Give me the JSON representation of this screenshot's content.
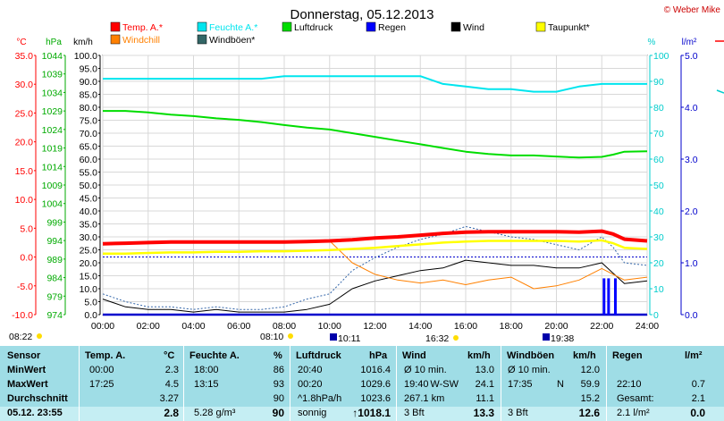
{
  "chart_data": {
    "type": "line",
    "title": "Donnerstag, 05.12.2013",
    "credit": "© Weber Mike",
    "legend": [
      {
        "name": "Temp. A.*",
        "color": "#ff0000"
      },
      {
        "name": "Feuchte A.*",
        "color": "#00e5ee"
      },
      {
        "name": "Luftdruck",
        "color": "#00dd00"
      },
      {
        "name": "Regen",
        "color": "#0000ff"
      },
      {
        "name": "Wind",
        "color": "#000000"
      },
      {
        "name": "Taupunkt*",
        "color": "#ffff00"
      },
      {
        "name": "Windchill",
        "color": "#ff8000"
      },
      {
        "name": "Windböen*",
        "color": "#336666"
      }
    ],
    "axes": {
      "temp": {
        "unit": "°C",
        "range": [
          -10,
          35
        ],
        "ticks": [
          "35.0",
          "30.0",
          "25.0",
          "20.0",
          "15.0",
          "10.0",
          "5.0",
          "0.0",
          "-5.0",
          "-10.0"
        ]
      },
      "pressure": {
        "unit": "hPa",
        "range": [
          974,
          1044
        ],
        "ticks": [
          "1044",
          "1039",
          "1034",
          "1029",
          "1024",
          "1019",
          "1014",
          "1009",
          "1004",
          "999",
          "994",
          "989",
          "984",
          "979",
          "974"
        ]
      },
      "wind": {
        "unit": "km/h",
        "range": [
          0,
          100
        ],
        "ticks": [
          "100.0",
          "95.0",
          "90.0",
          "85.0",
          "80.0",
          "75.0",
          "70.0",
          "65.0",
          "60.0",
          "55.0",
          "50.0",
          "45.0",
          "40.0",
          "35.0",
          "30.0",
          "25.0",
          "20.0",
          "15.0",
          "10.0",
          "5.0",
          "0.0"
        ]
      },
      "humidity": {
        "unit": "%",
        "range": [
          0,
          100
        ],
        "ticks": [
          "100",
          "90",
          "80",
          "70",
          "60",
          "50",
          "40",
          "30",
          "20",
          "10",
          "0"
        ]
      },
      "rain": {
        "unit": "l/m²",
        "range": [
          0,
          5
        ],
        "ticks": [
          "5.0",
          "4.0",
          "3.0",
          "2.0",
          "1.0",
          "0.0"
        ]
      },
      "time": {
        "ticks": [
          "00:00",
          "02:00",
          "04:00",
          "06:00",
          "08:00",
          "10:00",
          "12:00",
          "14:00",
          "16:00",
          "18:00",
          "20:00",
          "22:00",
          "24:00"
        ],
        "range_hours": [
          0,
          24
        ]
      }
    },
    "sun_markers": [
      "08:22",
      "08:10",
      "10:11",
      "16:32",
      "19:38"
    ],
    "x_hours": [
      0,
      1,
      2,
      3,
      4,
      5,
      6,
      7,
      8,
      9,
      10,
      11,
      12,
      13,
      14,
      15,
      16,
      17,
      18,
      19,
      20,
      21,
      22,
      22.5,
      23,
      24
    ],
    "series": [
      {
        "name": "Temp. A.*",
        "color": "#ff0000",
        "width": 4,
        "values": [
          2.3,
          2.4,
          2.5,
          2.6,
          2.6,
          2.6,
          2.6,
          2.6,
          2.6,
          2.7,
          2.8,
          3.0,
          3.3,
          3.5,
          3.8,
          4.1,
          4.3,
          4.4,
          4.4,
          4.4,
          4.4,
          4.3,
          4.5,
          4.0,
          3.1,
          2.8
        ]
      },
      {
        "name": "Taupunkt*",
        "color": "#ffff00",
        "width": 2.5,
        "values": [
          0.6,
          0.6,
          0.7,
          0.8,
          0.8,
          0.9,
          0.9,
          1.0,
          1.0,
          1.1,
          1.2,
          1.4,
          1.6,
          1.9,
          2.2,
          2.5,
          2.7,
          2.8,
          2.8,
          2.8,
          2.8,
          2.7,
          2.9,
          2.4,
          1.6,
          1.4
        ]
      },
      {
        "name": "Feuchte A.*",
        "color": "#00e5ee",
        "width": 2,
        "values": [
          91,
          91,
          91,
          91,
          91,
          91,
          91,
          91,
          92,
          92,
          92,
          92,
          92,
          92,
          92,
          89,
          88,
          87,
          87,
          86,
          86,
          88,
          89,
          89,
          89,
          89
        ]
      },
      {
        "name": "Luftdruck",
        "color": "#00dd00",
        "width": 2,
        "values": [
          1029.0,
          1029.0,
          1028.6,
          1028.0,
          1027.6,
          1027.0,
          1026.6,
          1026.0,
          1025.2,
          1024.5,
          1024.0,
          1023.0,
          1022.0,
          1021.0,
          1020.0,
          1019.0,
          1018.0,
          1017.4,
          1017.0,
          1017.0,
          1016.7,
          1016.4,
          1016.6,
          1017.2,
          1018.0,
          1018.1
        ]
      },
      {
        "name": "Windchill",
        "color": "#ff8000",
        "width": 1,
        "values": [
          2.3,
          2.4,
          2.5,
          2.6,
          2.6,
          2.6,
          2.6,
          2.6,
          2.6,
          2.7,
          2.8,
          -1.0,
          -3.0,
          -4.0,
          -4.5,
          -4.0,
          -4.8,
          -4.0,
          -3.5,
          -5.5,
          -5.0,
          -4.0,
          -2.0,
          -3.0,
          -4.0,
          -3.5
        ]
      },
      {
        "name": "Wind",
        "color": "#000000",
        "width": 1,
        "values": [
          6,
          3,
          2,
          2,
          1,
          2,
          1,
          1,
          1,
          2,
          4,
          10,
          13,
          15,
          17,
          18,
          21,
          20,
          19,
          19,
          18,
          18,
          20,
          16,
          12,
          13
        ]
      },
      {
        "name": "Windböen*",
        "color": "#336666",
        "width": 1,
        "values": [
          8,
          5,
          3,
          3,
          2,
          3,
          2,
          2,
          3,
          6,
          8,
          17,
          22,
          26,
          29,
          31,
          34,
          32,
          30,
          29,
          27,
          25,
          30,
          26,
          20,
          19
        ]
      }
    ],
    "rain_bars": [
      {
        "x": 22.1,
        "value": 0.7
      },
      {
        "x": 22.3,
        "value": 0.7
      },
      {
        "x": 22.6,
        "value": 0.7
      }
    ]
  },
  "table": {
    "headers": {
      "sensor": "Sensor",
      "temp": "Temp. A.",
      "temp_unit": "°C",
      "hum": "Feuchte A.",
      "hum_unit": "%",
      "press": "Luftdruck",
      "press_unit": "hPa",
      "wind": "Wind",
      "wind_unit": "km/h",
      "gust": "Windböen",
      "gust_unit": "km/h",
      "rain": "Regen",
      "rain_unit": "l/m²"
    },
    "rows": [
      {
        "label": "MinWert",
        "temp_time": "00:00",
        "temp_val": "2.3",
        "hum_time": "18:00",
        "hum_val": "86",
        "press_time": "20:40",
        "press_val": "1016.4",
        "wind_time": "Ø 10 min.",
        "wind_dir": "",
        "wind_val": "13.0",
        "gust_time": "Ø 10 min.",
        "gust_dir": "",
        "gust_val": "12.0",
        "rain_time": "",
        "rain_val": ""
      },
      {
        "label": "MaxWert",
        "temp_time": "17:25",
        "temp_val": "4.5",
        "hum_time": "13:15",
        "hum_val": "93",
        "press_time": "00:20",
        "press_val": "1029.6",
        "wind_time": "19:40",
        "wind_dir": "W-SW",
        "wind_val": "24.1",
        "gust_time": "17:35",
        "gust_dir": "N",
        "gust_val": "59.9",
        "rain_time": "22:10",
        "rain_val": "0.7"
      },
      {
        "label": "Durchschnitt",
        "temp_time": "",
        "temp_val": "3.27",
        "hum_time": "",
        "hum_val": "90",
        "press_time": "^1.8hPa/h",
        "press_val": "1023.6",
        "wind_time": "267.1 km",
        "wind_dir": "",
        "wind_val": "11.1",
        "gust_time": "",
        "gust_dir": "",
        "gust_val": "15.2",
        "rain_time": "Gesamt:",
        "rain_val": "2.1"
      },
      {
        "label": "05.12. 23:55",
        "temp_time": "",
        "temp_val": "2.8",
        "hum_time": "5.28 g/m³",
        "hum_val": "90",
        "press_time": "sonnig",
        "press_val": "↑1018.1",
        "wind_time": "3 Bft",
        "wind_dir": "",
        "wind_val": "13.3",
        "gust_time": "3 Bft",
        "gust_dir": "",
        "gust_val": "12.6",
        "rain_time": "2.1 l/m²",
        "rain_val": "0.0"
      }
    ]
  }
}
